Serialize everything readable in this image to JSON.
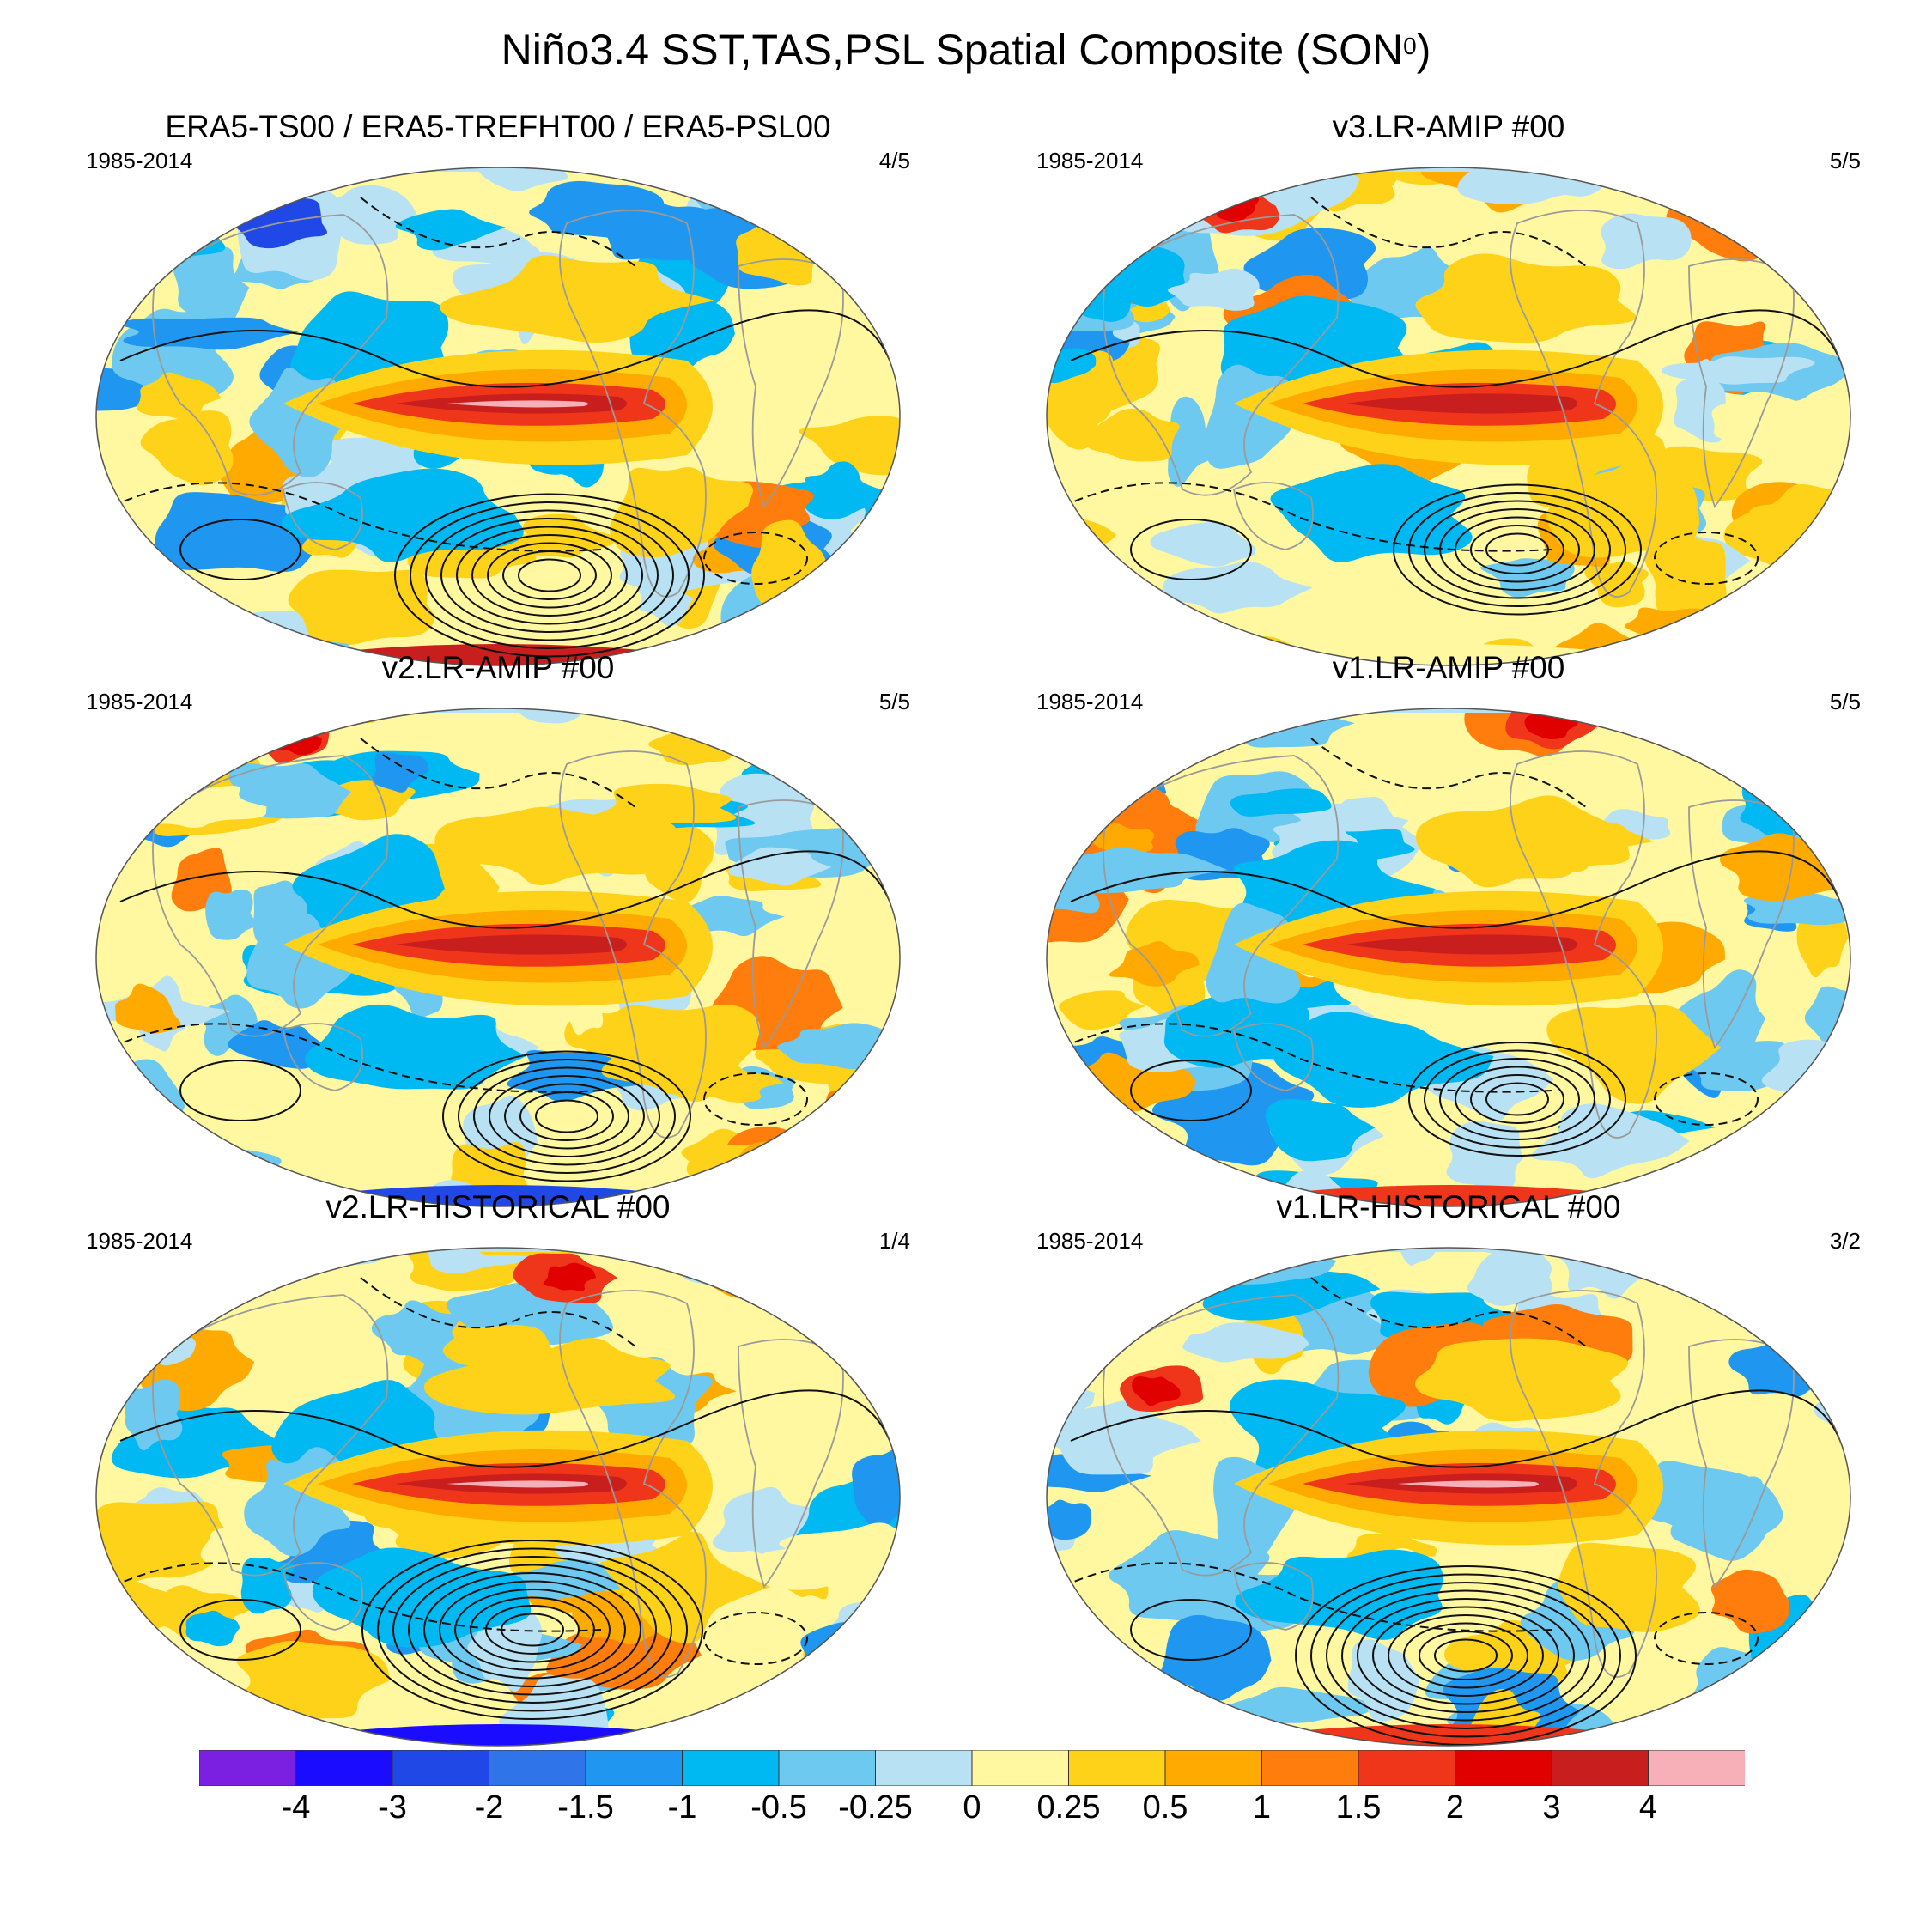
{
  "title": {
    "main": "Niño3.4 SST,TAS,PSL Spatial Composite (SON",
    "superscript": "0",
    "close": ")"
  },
  "panels": [
    {
      "title": "ERA5-TS00 / ERA5-TREFHT00 / ERA5-PSL00",
      "period": "1985-2014",
      "count": "4/5"
    },
    {
      "title": "v3.LR-AMIP  #00",
      "period": "1985-2014",
      "count": "5/5"
    },
    {
      "title": "v2.LR-AMIP  #00",
      "period": "1985-2014",
      "count": "5/5"
    },
    {
      "title": "v1.LR-AMIP  #00",
      "period": "1985-2014",
      "count": "5/5"
    },
    {
      "title": "v2.LR-HISTORICAL  #00",
      "period": "1985-2014",
      "count": "1/4"
    },
    {
      "title": "v1.LR-HISTORICAL  #00",
      "period": "1985-2014",
      "count": "3/2"
    }
  ],
  "colorbar": {
    "labels": [
      "-4",
      "-3",
      "-2",
      "-1.5",
      "-1",
      "-0.5",
      "-0.25",
      "0",
      "0.25",
      "0.5",
      "1",
      "1.5",
      "2",
      "3",
      "4"
    ],
    "colors": [
      "#7b1fe0",
      "#1a0dff",
      "#1f48e6",
      "#2f74e8",
      "#1f96f0",
      "#00b8f2",
      "#6ec9f0",
      "#b8e2f4",
      "#fff8a0",
      "#ffd21a",
      "#ffaa00",
      "#ff7d0d",
      "#f0361a",
      "#e00000",
      "#c81e1e",
      "#f8b0b8"
    ]
  },
  "chart_data": {
    "type": "heatmap",
    "title": "Niño3.4 SST,TAS,PSL Spatial Composite (SON0)",
    "projection": "global map (Robinson-like)",
    "variables": [
      "SST",
      "TAS",
      "PSL (contours)"
    ],
    "period": "1985-2014",
    "panels": [
      {
        "name": "ERA5-TS00 / ERA5-TREFHT00 / ERA5-PSL00",
        "count": "4/5"
      },
      {
        "name": "v3.LR-AMIP  #00",
        "count": "5/5"
      },
      {
        "name": "v2.LR-AMIP  #00",
        "count": "5/5"
      },
      {
        "name": "v1.LR-AMIP  #00",
        "count": "5/5"
      },
      {
        "name": "v2.LR-HISTORICAL  #00",
        "count": "1/4"
      },
      {
        "name": "v1.LR-HISTORICAL  #00",
        "count": "3/2"
      }
    ],
    "levels": [
      -4,
      -3,
      -2,
      -1.5,
      -1,
      -0.5,
      -0.25,
      0,
      0.25,
      0.5,
      1,
      1.5,
      2,
      3,
      4
    ],
    "pattern": "warm anomalies (>2) in the central-eastern equatorial Pacific, cool horseshoe in western Pacific, positive PSL contours over the South Pacific"
  }
}
